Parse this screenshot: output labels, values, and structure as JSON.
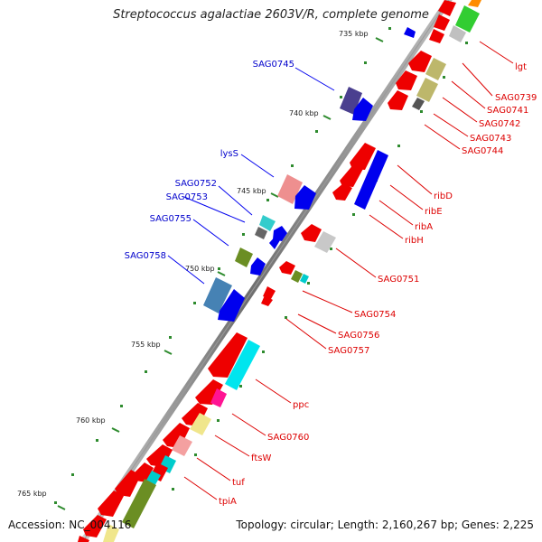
{
  "title": "Streptococcus agalactiae 2603V/R, complete genome",
  "footer": {
    "accession": "Accession: NC_004116",
    "topology": "Topology: circular; Length: 2,160,267 bp; Genes: 2,225"
  },
  "ruler": [
    {
      "label": "735 kbp"
    },
    {
      "label": "740 kbp"
    },
    {
      "label": "745 kbp"
    },
    {
      "label": "750 kbp"
    },
    {
      "label": "755 kbp"
    },
    {
      "label": "760 kbp"
    },
    {
      "label": "765 kbp"
    }
  ],
  "colors": {
    "backbone": "#8a8a8a",
    "plus_label": "#0000cc",
    "minus_label": "#dd0000",
    "tick": "#2e8b2e"
  },
  "genes_plus_labels": [
    "SAG0745",
    "lysS",
    "SAG0752",
    "SAG0753",
    "SAG0755",
    "SAG0758"
  ],
  "genes_minus_labels": [
    "lgt",
    "SAG0739",
    "SAG0741",
    "SAG0742",
    "SAG0743",
    "SAG0744",
    "ribD",
    "ribE",
    "ribA",
    "ribH",
    "SAG0751",
    "SAG0754",
    "SAG0756",
    "SAG0757",
    "ppc",
    "SAG0760",
    "ftsW",
    "tuf",
    "tpiA"
  ]
}
